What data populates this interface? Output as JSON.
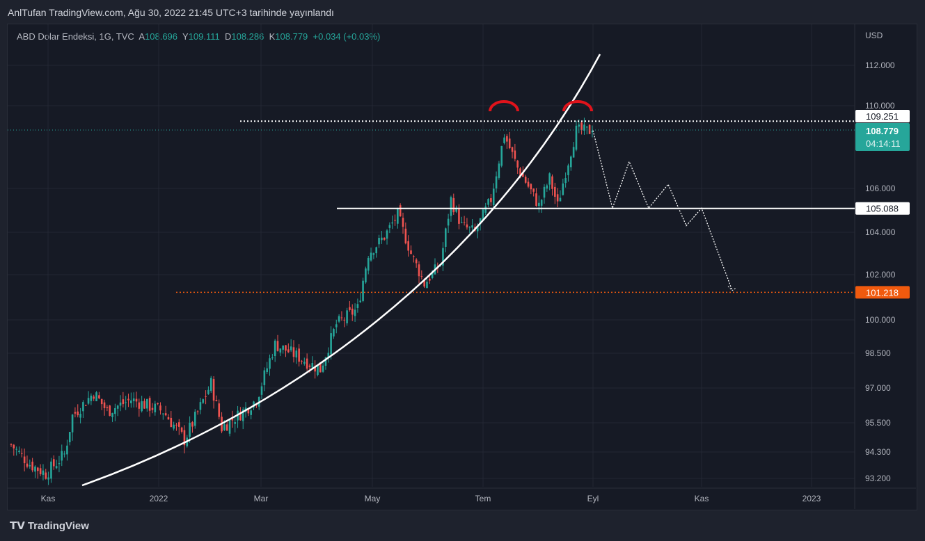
{
  "published": "AnlTufan TradingView.com, Ağu 30, 2022 21:45 UTC+3 tarihinde yayınlandı",
  "legend": {
    "symbol": "ABD Dolar Endeksi, 1G, TVC",
    "o_label": "A",
    "o": "108.696",
    "h_label": "Y",
    "h": "109.111",
    "l_label": "D",
    "l": "108.286",
    "c_label": "K",
    "c": "108.779",
    "change": "+0.034 (+0.03%)"
  },
  "brand": "TradingView",
  "colors": {
    "up": "#26a69a",
    "down": "#ef5350",
    "orange": "#f05a0e",
    "white": "#ffffff",
    "red": "#e0131b"
  },
  "chart_data": {
    "type": "candlestick",
    "currency": "USD",
    "y_ticks": [
      "112.000",
      "110.000",
      "106.000",
      "104.000",
      "102.000",
      "100.000",
      "98.500",
      "97.000",
      "95.500",
      "94.300",
      "93.200"
    ],
    "x_ticks": [
      "Kas",
      "2022",
      "Mar",
      "May",
      "Tem",
      "Eyl",
      "Kas",
      "2023"
    ],
    "close_anchors": [
      [
        0,
        94.6
      ],
      [
        7,
        93.8
      ],
      [
        13,
        93.4
      ],
      [
        20,
        94.2
      ],
      [
        23,
        95.8
      ],
      [
        31,
        96.8
      ],
      [
        36,
        96.0
      ],
      [
        45,
        96.5
      ],
      [
        57,
        96.0
      ],
      [
        65,
        94.8
      ],
      [
        69,
        95.7
      ],
      [
        75,
        97.2
      ],
      [
        79,
        95.3
      ],
      [
        86,
        95.9
      ],
      [
        92,
        96.5
      ],
      [
        99,
        98.9
      ],
      [
        107,
        98.4
      ],
      [
        116,
        97.8
      ],
      [
        122,
        99.8
      ],
      [
        130,
        100.5
      ],
      [
        134,
        103.0
      ],
      [
        140,
        103.8
      ],
      [
        145,
        104.8
      ],
      [
        150,
        103.0
      ],
      [
        155,
        101.6
      ],
      [
        161,
        102.5
      ],
      [
        165,
        105.5
      ],
      [
        169,
        104.3
      ],
      [
        174,
        104.0
      ],
      [
        180,
        105.5
      ],
      [
        185,
        108.6
      ],
      [
        190,
        107.0
      ],
      [
        198,
        105.2
      ],
      [
        202,
        106.5
      ],
      [
        205,
        105.2
      ],
      [
        208,
        106.8
      ],
      [
        212,
        108.8
      ],
      [
        218,
        108.78
      ]
    ],
    "levels": [
      {
        "label": "109.251",
        "style": "white-dotted"
      },
      {
        "label": "105.088",
        "style": "white-solid"
      },
      {
        "label": "101.218",
        "style": "orange-dotted"
      },
      {
        "label": "108.779",
        "sublabel": "04:14:11",
        "style": "last-price"
      }
    ],
    "projection_prices": [
      108.8,
      105.1,
      107.3,
      105.1,
      106.2,
      104.3,
      105.1,
      101.3
    ]
  }
}
